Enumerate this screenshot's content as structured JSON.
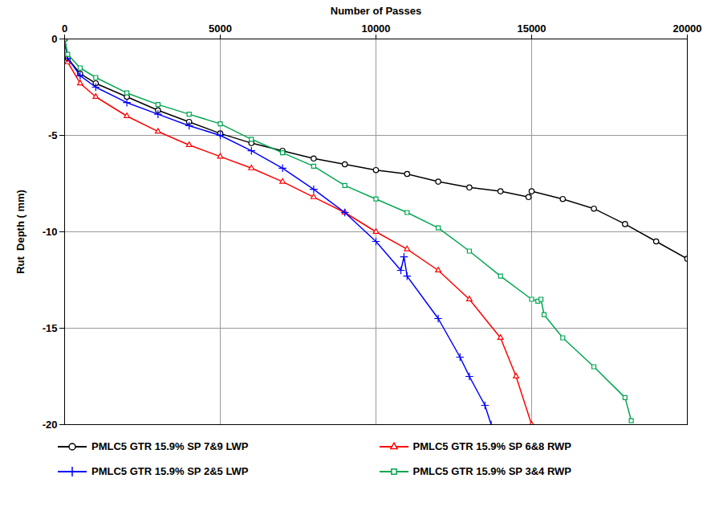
{
  "chart_data": {
    "type": "line",
    "xlabel": "Number of Passes",
    "ylabel": "Rut  Depth ( mm)",
    "xlim": [
      0,
      20000
    ],
    "xticks": [
      0,
      5000,
      10000,
      15000,
      20000
    ],
    "ylim": [
      -20,
      0
    ],
    "yticks": [
      -20,
      -15,
      -10,
      -5,
      0
    ],
    "grid": true,
    "legend": "bottom",
    "series": [
      {
        "name": "PMLC5 GTR 15.9% SP 7&9 LWP",
        "color": "#000000",
        "marker": "circle",
        "x": [
          0,
          100,
          500,
          1000,
          2000,
          3000,
          4000,
          5000,
          6000,
          7000,
          8000,
          9000,
          10000,
          11000,
          12000,
          13000,
          14000,
          14900,
          15000,
          16000,
          17000,
          18000,
          19000,
          20000
        ],
        "values": [
          0,
          -1.0,
          -1.8,
          -2.3,
          -3.0,
          -3.7,
          -4.3,
          -4.9,
          -5.4,
          -5.8,
          -6.2,
          -6.5,
          -6.8,
          -7.0,
          -7.4,
          -7.7,
          -7.9,
          -8.2,
          -7.9,
          -8.3,
          -8.8,
          -9.6,
          -10.5,
          -11.4
        ]
      },
      {
        "name": "PMLC5 GTR 15.9% SP 6&8 RWP",
        "color": "#ff0000",
        "marker": "triangle",
        "x": [
          0,
          100,
          500,
          1000,
          2000,
          3000,
          4000,
          5000,
          6000,
          7000,
          8000,
          9000,
          10000,
          11000,
          12000,
          13000,
          14000,
          14500,
          15000
        ],
        "values": [
          0,
          -1.2,
          -2.3,
          -3.0,
          -4.0,
          -4.8,
          -5.5,
          -6.1,
          -6.7,
          -7.4,
          -8.2,
          -9.0,
          -10.0,
          -10.9,
          -12.0,
          -13.5,
          -15.5,
          -17.5,
          -20
        ]
      },
      {
        "name": "PMLC5 GTR 15.9% SP 2&5 LWP",
        "color": "#0000ff",
        "marker": "plus",
        "x": [
          0,
          100,
          500,
          1000,
          2000,
          3000,
          4000,
          5000,
          6000,
          7000,
          8000,
          9000,
          10000,
          10800,
          10900,
          11000,
          12000,
          12700,
          13000,
          13500,
          13700
        ],
        "values": [
          0,
          -1.0,
          -1.9,
          -2.5,
          -3.3,
          -3.9,
          -4.5,
          -5.0,
          -5.8,
          -6.7,
          -7.8,
          -9.0,
          -10.5,
          -12.0,
          -11.3,
          -12.3,
          -14.5,
          -16.5,
          -17.5,
          -19.0,
          -20
        ]
      },
      {
        "name": "PMLC5 GTR 15.9% SP 3&4 RWP",
        "color": "#00a651",
        "marker": "square",
        "x": [
          0,
          100,
          500,
          1000,
          2000,
          3000,
          4000,
          5000,
          6000,
          7000,
          8000,
          9000,
          10000,
          11000,
          12000,
          13000,
          14000,
          15000,
          15200,
          15300,
          15400,
          16000,
          17000,
          18000,
          18200
        ],
        "values": [
          0,
          -0.8,
          -1.5,
          -2.0,
          -2.8,
          -3.4,
          -3.9,
          -4.4,
          -5.2,
          -5.9,
          -6.6,
          -7.6,
          -8.3,
          -9.0,
          -9.8,
          -11.0,
          -12.3,
          -13.5,
          -13.6,
          -13.5,
          -14.3,
          -15.5,
          -17.0,
          -18.6,
          -19.8
        ]
      }
    ]
  }
}
